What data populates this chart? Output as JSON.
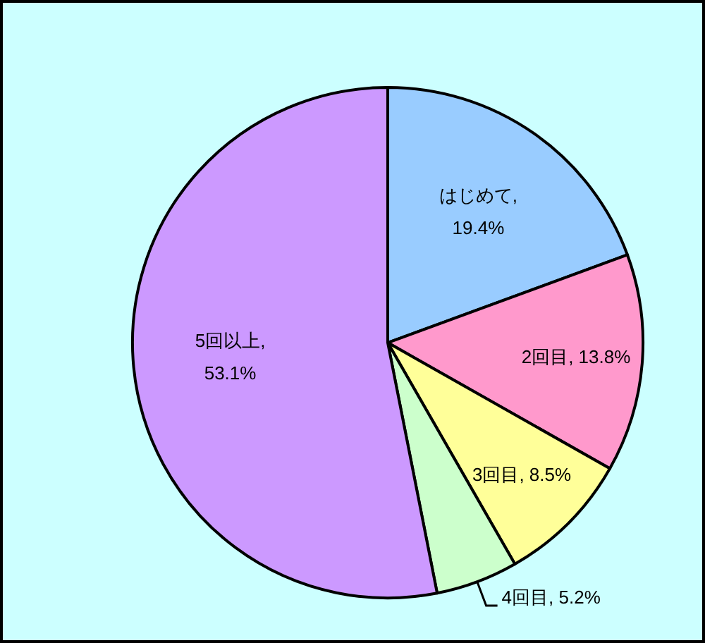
{
  "chart_data": {
    "type": "pie",
    "categories": [
      "はじめて",
      "2回目",
      "3回目",
      "4回目",
      "5回以上"
    ],
    "values": [
      19.4,
      13.8,
      8.5,
      5.2,
      53.1
    ],
    "colors": [
      "#99ccff",
      "#ff99cc",
      "#ffff99",
      "#ccffcc",
      "#cc99ff"
    ],
    "value_labels": [
      ", 19.4%",
      ", 13.8%",
      ", 8.5%",
      ", 5.2%",
      ", 53.1%"
    ]
  }
}
